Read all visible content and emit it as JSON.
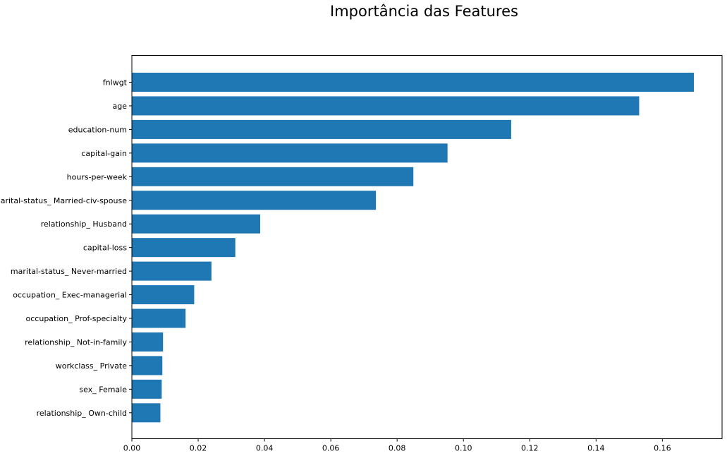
{
  "chart_data": {
    "type": "bar",
    "orientation": "horizontal",
    "title": "Importância das Features",
    "xlabel": "",
    "ylabel": "",
    "categories": [
      "fnlwgt",
      "age",
      "education-num",
      "capital-gain",
      "hours-per-week",
      "marital-status_ Married-civ-spouse",
      "relationship_ Husband",
      "capital-loss",
      "marital-status_ Never-married",
      "occupation_ Exec-managerial",
      "occupation_ Prof-specialty",
      "relationship_ Not-in-family",
      "workclass_ Private",
      "sex_ Female",
      "relationship_ Own-child"
    ],
    "values": [
      0.1695,
      0.153,
      0.1144,
      0.0952,
      0.0849,
      0.0736,
      0.0387,
      0.0312,
      0.024,
      0.0188,
      0.0162,
      0.0094,
      0.0092,
      0.009,
      0.0086
    ],
    "xlim": [
      0,
      0.178
    ],
    "xticks": [
      0.0,
      0.02,
      0.04,
      0.06,
      0.08,
      0.1,
      0.12,
      0.14,
      0.16
    ],
    "xtick_labels": [
      "0.00",
      "0.02",
      "0.04",
      "0.06",
      "0.08",
      "0.10",
      "0.12",
      "0.14",
      "0.16"
    ],
    "grid": false,
    "legend": "none",
    "bar_color": "#1f77b4"
  }
}
